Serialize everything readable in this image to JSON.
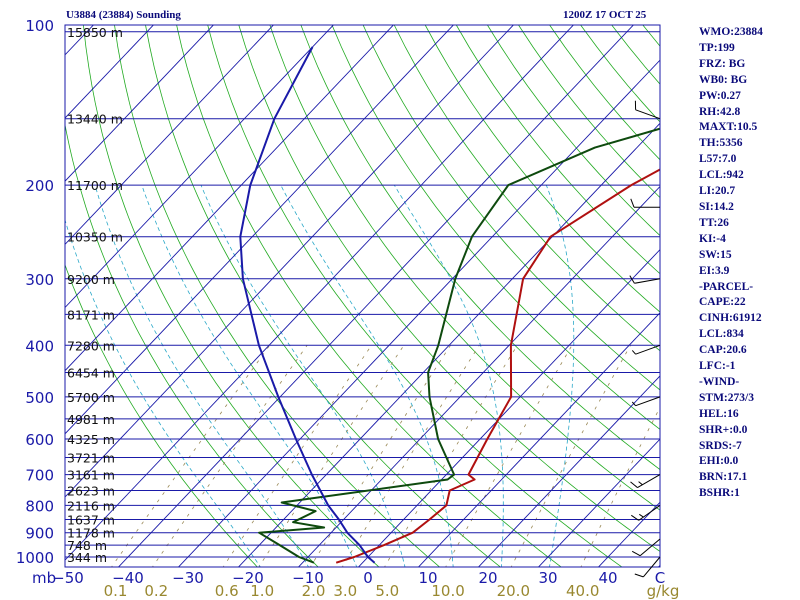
{
  "header": {
    "station": "U3884 (23884) Sounding",
    "time": "1200Z 17 OCT 25"
  },
  "indices": [
    "WMO:23884",
    "TP:199",
    "FRZ: BG",
    "WB0: BG",
    "PW:0.27",
    "RH:42.8",
    "MAXT:10.5",
    "TH:5356",
    "L57:7.0",
    "LCL:942",
    "LI:20.7",
    "SI:14.2",
    "TT:26",
    "KI:-4",
    "SW:15",
    "EI:3.9",
    "-PARCEL-",
    "CAPE:22",
    "CINH:61912",
    "LCL:834",
    "CAP:20.6",
    "LFC:-1",
    "-WIND-",
    "STM:273/3",
    "HEL:16",
    "SHR+:0.0",
    "SRDS:-7",
    "EHI:0.0",
    "BRN:17.1",
    "BSHR:1"
  ],
  "colors": {
    "temperature": "#b01010",
    "dewpoint": "#0e4a0e",
    "parcel": "#1a1aa8",
    "isobar": "#1a1aa8",
    "isotherm": "#1a1aa8",
    "dry_adiabat": "#22aa22",
    "moist_adiabat": "#2aa8c8",
    "mixing_ratio": "#998855",
    "mixing_label": "#998830",
    "axis_text": "#1a1aa8"
  },
  "chart_data": {
    "type": "line",
    "subtype": "skew-T log-p",
    "title": "U3884 (23884) Sounding 1200Z 17 OCT 25",
    "xlabel": "°C",
    "ylabel": "mb",
    "xlim": [
      -50,
      50
    ],
    "ylim": [
      1000,
      100
    ],
    "x_ticks": [
      -50,
      -40,
      -30,
      -20,
      -10,
      0,
      10,
      20,
      30,
      40
    ],
    "pressure_levels": [
      100,
      200,
      300,
      400,
      500,
      600,
      700,
      800,
      900,
      1000
    ],
    "mixing_ratio_ticks": [
      "0.1",
      "0.2",
      "0.6",
      "1.0",
      "2.0",
      "3.0",
      "5.0",
      "10.0",
      "20.0",
      "40.0"
    ],
    "mixing_ratio_unit": "g/kg",
    "height_labels": [
      {
        "p": 103,
        "label": "15850 m"
      },
      {
        "p": 150,
        "label": "13440 m"
      },
      {
        "p": 200,
        "label": "11700 m"
      },
      {
        "p": 250,
        "label": "10350 m"
      },
      {
        "p": 300,
        "label": "9200 m"
      },
      {
        "p": 350,
        "label": "8171 m"
      },
      {
        "p": 400,
        "label": "7280 m"
      },
      {
        "p": 450,
        "label": "6454 m"
      },
      {
        "p": 500,
        "label": "5700 m"
      },
      {
        "p": 550,
        "label": "4981 m"
      },
      {
        "p": 600,
        "label": "4325 m"
      },
      {
        "p": 650,
        "label": "3721 m"
      },
      {
        "p": 700,
        "label": "3161 m"
      },
      {
        "p": 750,
        "label": "2623 m"
      },
      {
        "p": 800,
        "label": "2116 m"
      },
      {
        "p": 850,
        "label": "1637 m"
      },
      {
        "p": 900,
        "label": "1178 m"
      },
      {
        "p": 950,
        "label": "748 m"
      },
      {
        "p": 1000,
        "label": "344 m"
      }
    ],
    "series": [
      {
        "name": "Temperature",
        "points": [
          [
            1025,
            -4.4
          ],
          [
            1000,
            -2.3
          ],
          [
            950,
            0.8
          ],
          [
            900,
            3.6
          ],
          [
            850,
            4.3
          ],
          [
            800,
            4.9
          ],
          [
            750,
            3.1
          ],
          [
            715,
            5.5
          ],
          [
            700,
            3.7
          ],
          [
            600,
            1.2
          ],
          [
            500,
            -1.5
          ],
          [
            400,
            -9.7
          ],
          [
            300,
            -18.2
          ],
          [
            250,
            -20.3
          ],
          [
            200,
            -15.0
          ],
          [
            178,
            -11.0
          ],
          [
            150,
            0.0
          ],
          [
            130,
            5.0
          ],
          [
            100,
            12.0
          ]
        ]
      },
      {
        "name": "Dewpoint",
        "points": [
          [
            1025,
            -8.1
          ],
          [
            1000,
            -11.5
          ],
          [
            950,
            -16.6
          ],
          [
            900,
            -22.0
          ],
          [
            880,
            -12.0
          ],
          [
            860,
            -18.0
          ],
          [
            820,
            -16.0
          ],
          [
            790,
            -23.0
          ],
          [
            715,
            1.0
          ],
          [
            700,
            1.3
          ],
          [
            600,
            -7.0
          ],
          [
            500,
            -15.1
          ],
          [
            450,
            -19.2
          ],
          [
            400,
            -21.8
          ],
          [
            300,
            -29.5
          ],
          [
            250,
            -33.4
          ],
          [
            200,
            -35.5
          ],
          [
            170,
            -27.0
          ],
          [
            150,
            -15.0
          ],
          [
            120,
            -4.0
          ],
          [
            100,
            2.0
          ]
        ]
      },
      {
        "name": "Parcel",
        "points": [
          [
            1025,
            2.0
          ],
          [
            1000,
            0.0
          ],
          [
            950,
            -3.3
          ],
          [
            900,
            -7.3
          ],
          [
            850,
            -10.8
          ],
          [
            800,
            -14.8
          ],
          [
            700,
            -22.4
          ],
          [
            600,
            -30.7
          ],
          [
            500,
            -40.3
          ],
          [
            400,
            -51.7
          ],
          [
            300,
            -64.9
          ],
          [
            250,
            -72.0
          ],
          [
            200,
            -78.5
          ],
          [
            150,
            -85.0
          ],
          [
            110,
            -90.0
          ]
        ]
      }
    ],
    "wind_barbs": [
      {
        "p": 150,
        "dir": 290,
        "speed": 10
      },
      {
        "p": 220,
        "dir": 270,
        "speed": 10
      },
      {
        "p": 300,
        "dir": 260,
        "speed": 10
      },
      {
        "p": 400,
        "dir": 250,
        "speed": 5
      },
      {
        "p": 500,
        "dir": 250,
        "speed": 5
      },
      {
        "p": 700,
        "dir": 240,
        "speed": 15
      },
      {
        "p": 800,
        "dir": 235,
        "speed": 15
      },
      {
        "p": 925,
        "dir": 230,
        "speed": 10
      },
      {
        "p": 1000,
        "dir": 220,
        "speed": 10
      }
    ]
  }
}
